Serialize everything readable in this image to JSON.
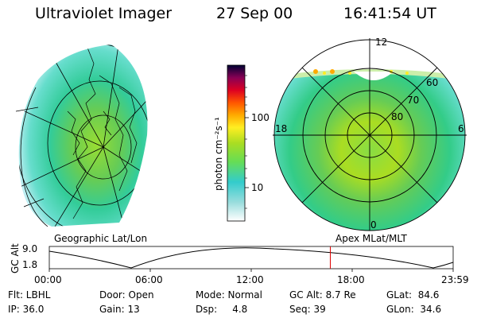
{
  "header": {
    "instrument": "Ultraviolet Imager",
    "date": "27 Sep 00",
    "time": "16:41:54 UT"
  },
  "geo_panel": {
    "caption": "Geographic Lat/Lon"
  },
  "apex_panel": {
    "caption": "Apex MLat/MLT",
    "mlt_labels": {
      "top": "12",
      "left": "18",
      "right": "6",
      "bottom": "0"
    },
    "lat_labels": [
      "60",
      "70",
      "80"
    ]
  },
  "colorbar": {
    "label": "photon cm⁻²s⁻¹",
    "ticks": [
      "100",
      "10"
    ],
    "stops": [
      "#ffffff",
      "#33cccc",
      "#66dd55",
      "#aadd22",
      "#ffcc00",
      "#ff6600",
      "#dd0000",
      "#880033",
      "#330044",
      "#000022"
    ]
  },
  "timeline": {
    "ylabel": "GC Alt",
    "y_ticks": [
      "9.0",
      "1.8"
    ],
    "x_ticks": [
      "00:00",
      "06:00",
      "12:00",
      "18:00",
      "23:59"
    ],
    "current_marker_hours": 16.7
  },
  "status": {
    "filter": "Flt: LBHL",
    "ip": "IP: 36.0",
    "door": "Door: Open",
    "gain": "Gain: 13",
    "mode": "Mode: Normal",
    "dsp": "Dsp:     4.8",
    "gc_alt": "GC Alt: 8.7 Re",
    "seq": "Seq: 39",
    "glat": "GLat:  84.6",
    "glon": "GLon:  34.6"
  }
}
